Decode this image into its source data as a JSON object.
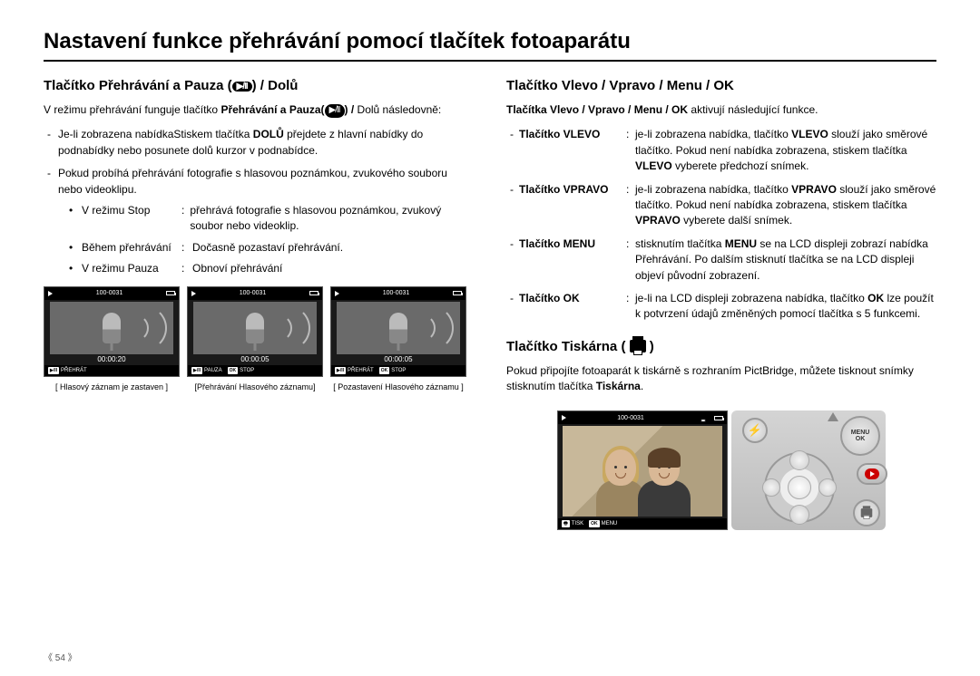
{
  "page": {
    "title": "Nastavení funkce přehrávání pomocí tlačítek fotoaparátu",
    "number": "54"
  },
  "left": {
    "heading_pre": "Tlačítko Přehrávání a Pauza (",
    "heading_post": ") / Dolů",
    "intro_a": "V režimu přehrávání funguje tlačítko ",
    "intro_b": "Přehrávání a Pauza(",
    "intro_c": ") /",
    "intro_d": " Dolů následovně:",
    "dash1_a": "Je-li zobrazena nabídkaStiskem tlačítka ",
    "dash1_b": "DOLŮ",
    "dash1_c": " přejdete z hlavní nabídky do podnabídky nebo posunete dolů kurzor v podnabídce.",
    "dash2": "Pokud probíhá přehrávání fotografie s hlasovou poznámkou, zvukového souboru nebo videoklipu.",
    "b1_label": "V režimu Stop",
    "b1_sep": ":",
    "b1_desc": "přehrává fotografie s hlasovou poznámkou, zvukový soubor nebo videoklip.",
    "b2_label": "Během přehrávání",
    "b2_sep": ":",
    "b2_desc": "Dočasně pozastaví přehrávání.",
    "b3_label": "V režimu Pauza",
    "b3_sep": ":",
    "b3_desc": "Obnoví přehrávání",
    "screens": [
      {
        "file": "100-0031",
        "time": "00:00:20",
        "footer": [
          {
            "icon": "▶/II",
            "label": "PŘEHRÁT"
          }
        ],
        "caption": "[ Hlasový záznam je zastaven ]"
      },
      {
        "file": "100-0031",
        "time": "00:00:05",
        "footer": [
          {
            "icon": "▶/II",
            "label": "PAUZA"
          },
          {
            "icon": "OK",
            "label": "STOP"
          }
        ],
        "caption": "[Přehrávání Hlasového záznamu]"
      },
      {
        "file": "100-0031",
        "time": "00:00:05",
        "footer": [
          {
            "icon": "▶/II",
            "label": "PŘEHRÁT"
          },
          {
            "icon": "OK",
            "label": "STOP"
          }
        ],
        "caption": "[ Pozastavení Hlasového záznamu ]"
      }
    ]
  },
  "right": {
    "heading1": "Tlačítko Vlevo / Vpravo / Menu / OK",
    "intro_a": "Tlačítka Vlevo / Vpravo / Menu / OK",
    "intro_b": " aktivují následující funkce.",
    "rows": [
      {
        "label": "Tlačítko VLEVO",
        "sep": ":",
        "parts": [
          "je-li zobrazena nabídka, tlačítko ",
          " slouží jako směrové tlačítko.  Pokud není nabídka zobrazena, stiskem tlačítka ",
          " vyberete předchozí snímek."
        ],
        "bold": [
          "VLEVO",
          "VLEVO"
        ]
      },
      {
        "label": "Tlačítko VPRAVO",
        "sep": ":",
        "parts": [
          "je-li zobrazena nabídka, tlačítko ",
          " slouží jako směrové tlačítko.  Pokud není nabídka zobrazena, stiskem tlačítka ",
          " vyberete další snímek."
        ],
        "bold": [
          "VPRAVO",
          "VPRAVO"
        ]
      },
      {
        "label": "Tlačítko MENU",
        "sep": ":",
        "parts": [
          "stisknutím tlačítka ",
          " se na LCD displeji zobrazí nabídka Přehrávání.  Po dalším stisknutí tlačítka se na LCD displeji objeví původní zobrazení."
        ],
        "bold": [
          "MENU"
        ]
      },
      {
        "label": "Tlačítko OK",
        "sep": ":",
        "parts": [
          "je-li na LCD displeji zobrazena nabídka, tlačítko ",
          " lze použít k potvrzení údajů změněných pomocí tlačítka s 5 funkcemi."
        ],
        "bold": [
          "OK"
        ]
      }
    ],
    "heading2": "Tlačítko Tiskárna (",
    "printer_a": "Pokud připojíte fotoaparát k tiskárně s rozhraním PictBridge, můžete tisknout snímky stisknutím tlačítka ",
    "printer_b": "Tiskárna",
    "printer_c": ".",
    "photo": {
      "file": "100-0031",
      "footer": [
        {
          "icon": "🖶",
          "label": "TISK"
        },
        {
          "icon": "OK",
          "label": "MENU"
        }
      ]
    },
    "menu_label": "MENU\nOK"
  },
  "colors": {
    "text": "#000000",
    "rule": "#000000",
    "screen_bg": "#1a1a1a",
    "screen_body": "#6a6a6a",
    "camera_panel": "#c8c8c8",
    "red": "#cc0000"
  }
}
